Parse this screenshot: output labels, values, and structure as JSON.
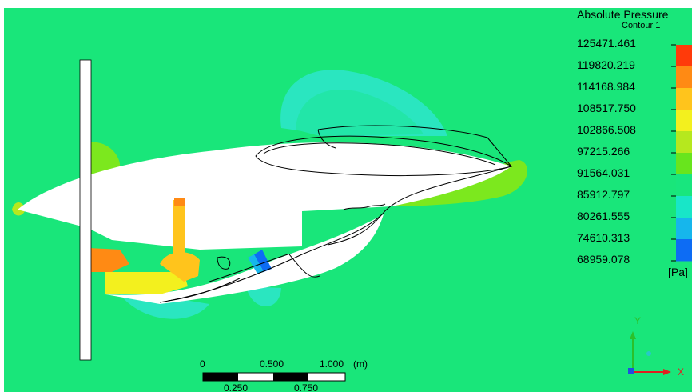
{
  "legend": {
    "title": "Absolute Pressure",
    "subtitle": "Contour 1",
    "unit": "[Pa]",
    "levels": [
      "125471.461",
      "119820.219",
      "114168.984",
      "108517.750",
      "102866.508",
      "97215.266",
      "91564.031",
      "85912.797",
      "80261.555",
      "74610.313",
      "68959.078"
    ],
    "colors": [
      "#ff3a0a",
      "#ff8a14",
      "#ffc41c",
      "#f3f01e",
      "#b6e81e",
      "#68e51d",
      "#18e67e",
      "#18e6c8",
      "#16b6ec",
      "#0d6cf4",
      "#0a1ef8"
    ]
  },
  "scale_bar": {
    "top_labels": [
      "0",
      "0.500",
      "1.000"
    ],
    "unit": "(m)",
    "bottom_labels": [
      "0.250",
      "0.750"
    ]
  },
  "axes": {
    "y": "Y",
    "x": "X"
  },
  "colors": {
    "background_field": "#19e67a",
    "body": "#ffffff",
    "outline": "#000000"
  }
}
